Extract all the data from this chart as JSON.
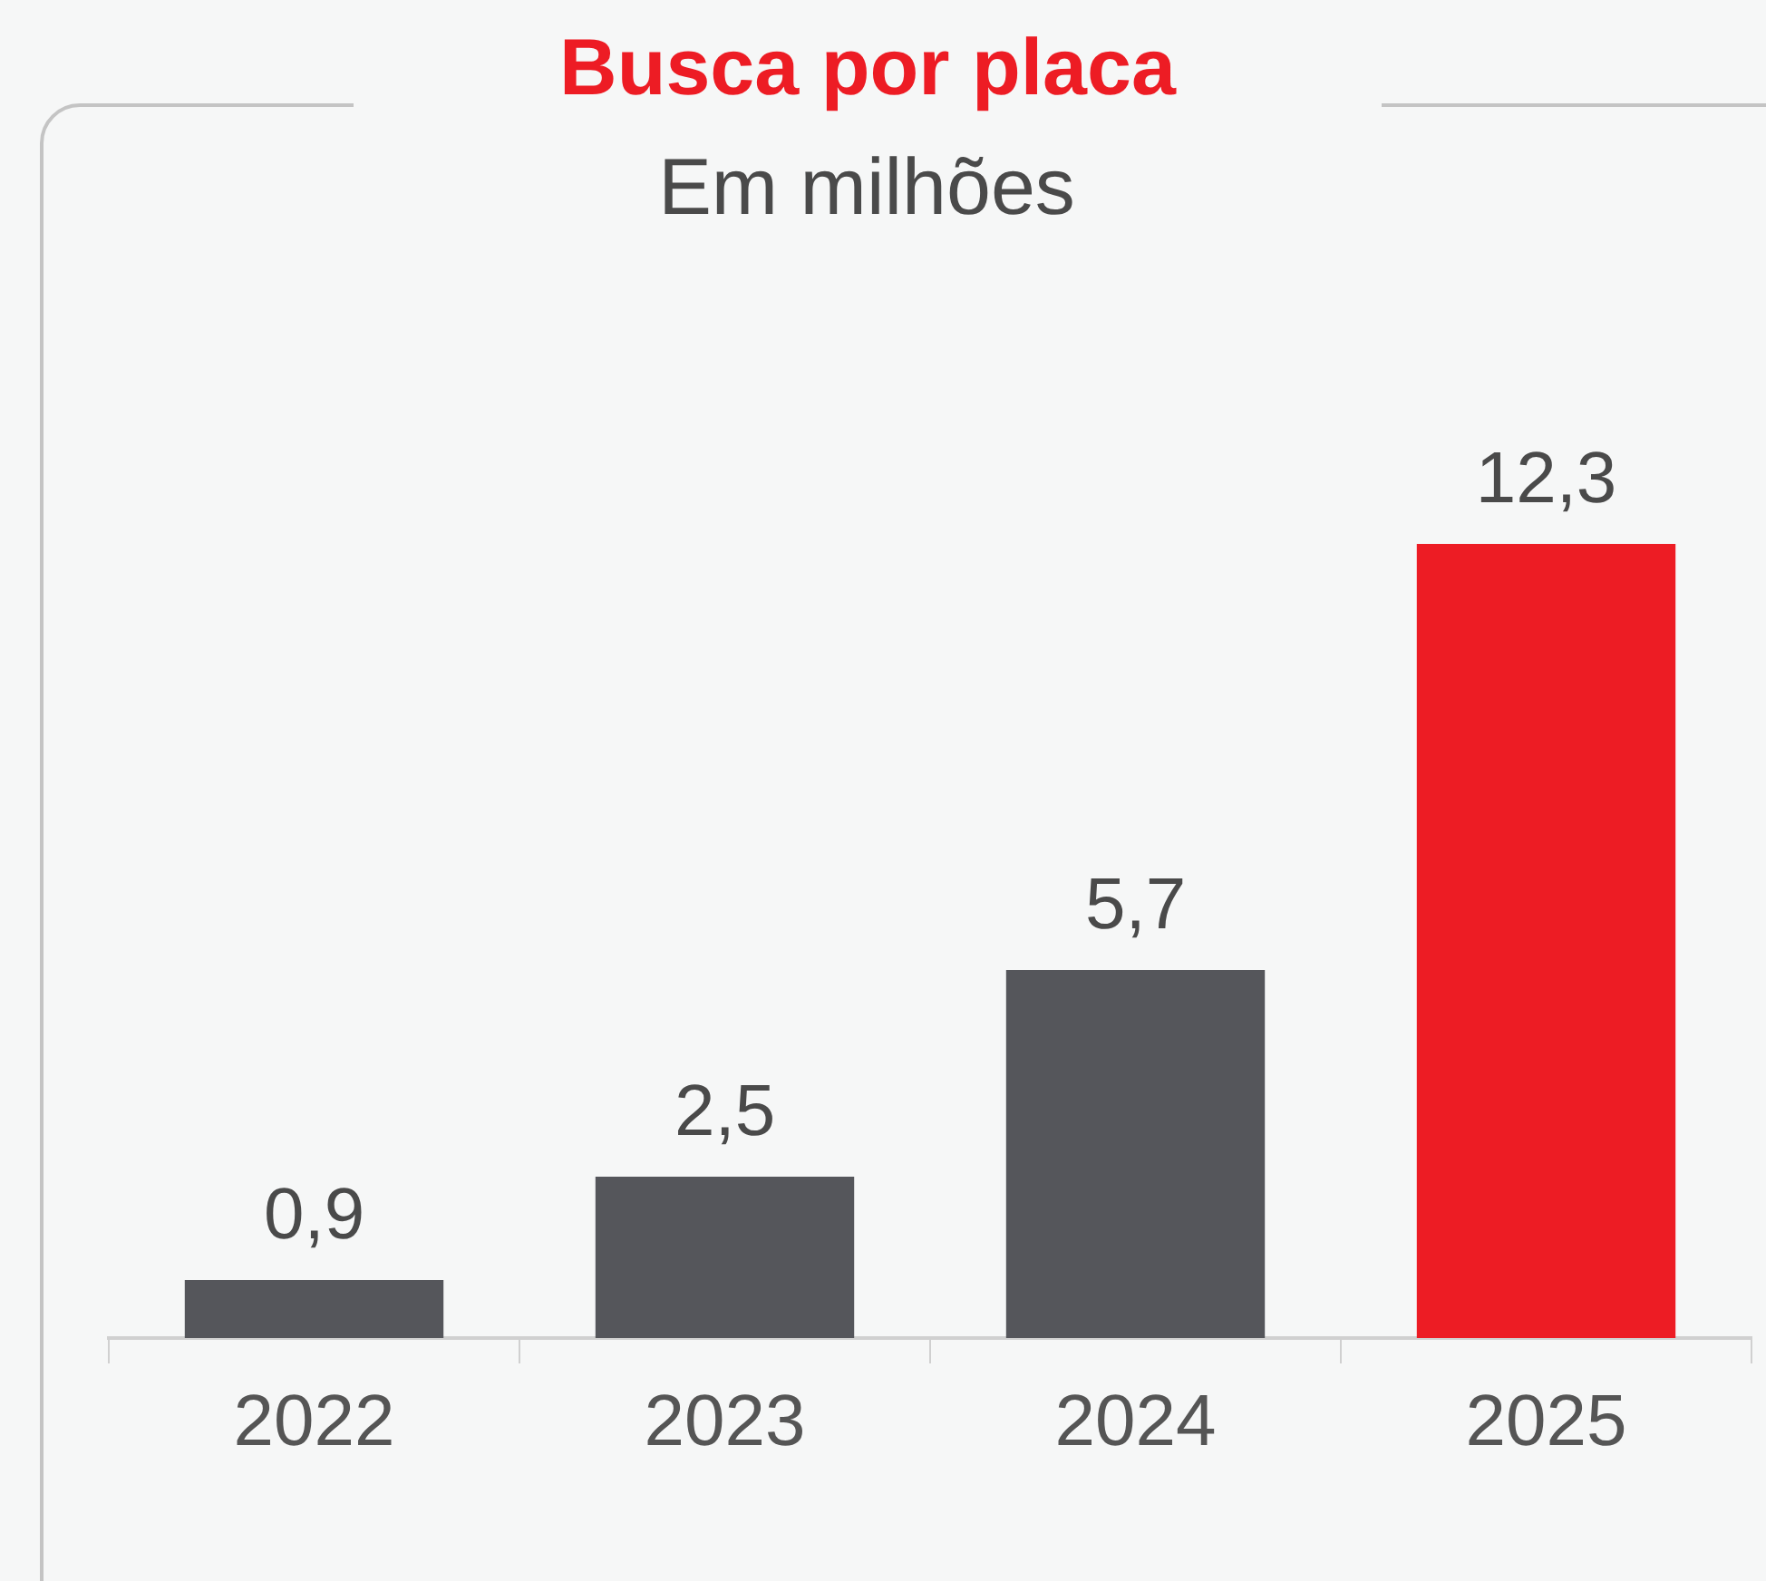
{
  "chart_data": {
    "type": "bar",
    "title": "Busca por placa",
    "subtitle": "Em milhões",
    "categories": [
      "2022",
      "2023",
      "2024",
      "2025"
    ],
    "values": [
      0.9,
      2.5,
      5.7,
      12.3
    ],
    "colors": [
      "#55565b",
      "#55565b",
      "#55565b",
      "#ed1c24"
    ],
    "value_labels": [
      "0,9",
      "2,5",
      "5,7",
      "12,3"
    ],
    "legend": false
  }
}
